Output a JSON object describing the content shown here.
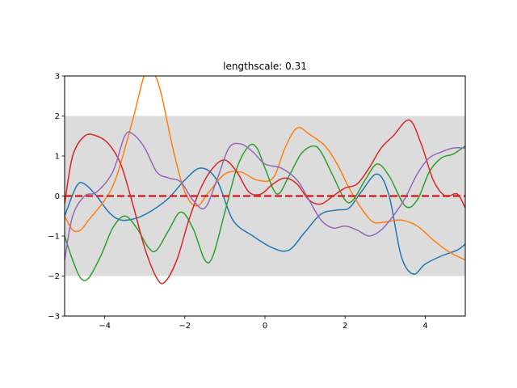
{
  "chart_data": {
    "type": "line",
    "title": "lengthscale: 0.31",
    "xlabel": "",
    "ylabel": "",
    "xlim": [
      -5,
      5
    ],
    "ylim": [
      -3,
      3
    ],
    "grid": false,
    "x_ticks": [
      -4,
      -2,
      0,
      2,
      4
    ],
    "x_tick_labels": [
      "−4",
      "−2",
      "0",
      "2",
      "4"
    ],
    "y_ticks": [
      -3,
      -2,
      -1,
      0,
      1,
      2,
      3
    ],
    "y_tick_labels": [
      "−3",
      "−2",
      "−1",
      "0",
      "1",
      "2",
      "3"
    ],
    "band": {
      "y_low": -2,
      "y_high": 2,
      "color": "#dcdcdc"
    },
    "mean_line": {
      "y": 0,
      "color": "#d62728",
      "style": "dashed"
    },
    "series": [
      {
        "color": "#1f77b4",
        "x": [
          -5,
          -4.7,
          -4.5,
          -4.2,
          -3.9,
          -3.6,
          -3.2,
          -2.8,
          -2.4,
          -2.0,
          -1.6,
          -1.2,
          -0.8,
          -0.3,
          0.2,
          0.6,
          1.0,
          1.4,
          1.8,
          2.1,
          2.4,
          2.8,
          3.1,
          3.4,
          3.7,
          4.0,
          4.4,
          4.8,
          5.0
        ],
        "y": [
          -0.5,
          0.25,
          0.3,
          0.0,
          -0.4,
          -0.6,
          -0.55,
          -0.35,
          -0.05,
          0.4,
          0.7,
          0.4,
          -0.6,
          -1.0,
          -1.3,
          -1.35,
          -0.9,
          -0.45,
          -0.35,
          -0.3,
          0.1,
          0.55,
          0.0,
          -1.5,
          -1.95,
          -1.7,
          -1.5,
          -1.35,
          -1.2
        ]
      },
      {
        "color": "#ff7f0e",
        "x": [
          -5,
          -4.8,
          -4.6,
          -4.4,
          -4.0,
          -3.7,
          -3.3,
          -3.0,
          -2.8,
          -2.6,
          -2.3,
          -2.0,
          -1.7,
          -1.4,
          -1.0,
          -0.6,
          -0.2,
          0.2,
          0.5,
          0.8,
          1.1,
          1.5,
          1.8,
          2.1,
          2.4,
          2.7,
          3.0,
          3.4,
          3.8,
          4.2,
          4.6,
          5.0
        ],
        "y": [
          -0.5,
          -0.85,
          -0.85,
          -0.6,
          -0.1,
          0.5,
          1.9,
          3.05,
          3.1,
          2.6,
          1.2,
          0.1,
          -0.25,
          0.1,
          0.55,
          0.6,
          0.4,
          0.45,
          1.2,
          1.7,
          1.55,
          1.25,
          0.8,
          0.2,
          -0.3,
          -0.65,
          -0.65,
          -0.6,
          -0.75,
          -1.1,
          -1.4,
          -1.6
        ]
      },
      {
        "color": "#2ca02c",
        "x": [
          -5,
          -4.8,
          -4.6,
          -4.4,
          -4.1,
          -3.8,
          -3.5,
          -3.2,
          -2.9,
          -2.7,
          -2.4,
          -2.1,
          -1.8,
          -1.5,
          -1.3,
          -1.0,
          -0.7,
          -0.4,
          -0.2,
          0.0,
          0.3,
          0.6,
          0.9,
          1.2,
          1.4,
          1.7,
          2.0,
          2.2,
          2.5,
          2.8,
          3.1,
          3.5,
          3.8,
          4.1,
          4.4,
          4.7,
          5.0
        ],
        "y": [
          -1.0,
          -1.6,
          -2.05,
          -2.05,
          -1.5,
          -0.8,
          -0.5,
          -0.8,
          -1.3,
          -1.35,
          -0.85,
          -0.4,
          -0.8,
          -1.6,
          -1.5,
          -0.4,
          0.7,
          1.25,
          1.2,
          0.7,
          0.05,
          0.5,
          1.05,
          1.25,
          1.1,
          0.5,
          -0.1,
          -0.1,
          0.4,
          0.8,
          0.5,
          -0.25,
          -0.1,
          0.6,
          0.95,
          1.05,
          1.25
        ]
      },
      {
        "color": "#d62728",
        "x": [
          -5,
          -4.8,
          -4.5,
          -4.2,
          -3.9,
          -3.6,
          -3.3,
          -3.0,
          -2.7,
          -2.5,
          -2.2,
          -1.9,
          -1.6,
          -1.3,
          -1.0,
          -0.7,
          -0.4,
          -0.1,
          0.2,
          0.5,
          0.8,
          1.1,
          1.4,
          1.7,
          2.0,
          2.3,
          2.6,
          2.9,
          3.2,
          3.6,
          3.9,
          4.2,
          4.5,
          4.8,
          5.0
        ],
        "y": [
          -0.2,
          1.0,
          1.5,
          1.5,
          1.3,
          0.8,
          -0.2,
          -1.3,
          -2.05,
          -2.15,
          -1.6,
          -0.6,
          0.2,
          0.7,
          0.9,
          0.6,
          0.1,
          0.05,
          0.3,
          0.45,
          0.3,
          -0.1,
          -0.2,
          0.0,
          0.2,
          0.3,
          0.7,
          1.2,
          1.5,
          1.9,
          1.3,
          0.4,
          0.0,
          0.05,
          -0.3
        ]
      },
      {
        "color": "#9467bd",
        "x": [
          -5,
          -4.8,
          -4.5,
          -4.2,
          -3.8,
          -3.5,
          -3.3,
          -3.0,
          -2.7,
          -2.4,
          -2.1,
          -1.8,
          -1.5,
          -1.2,
          -0.9,
          -0.6,
          -0.3,
          0.0,
          0.4,
          0.8,
          1.1,
          1.4,
          1.7,
          2.0,
          2.3,
          2.6,
          2.9,
          3.2,
          3.5,
          3.8,
          4.1,
          4.4,
          4.7,
          5.0
        ],
        "y": [
          -1.6,
          -0.5,
          0.0,
          0.1,
          0.6,
          1.5,
          1.55,
          1.2,
          0.6,
          0.45,
          0.35,
          -0.1,
          -0.3,
          0.4,
          1.2,
          1.3,
          1.1,
          0.8,
          0.7,
          0.4,
          -0.1,
          -0.6,
          -0.8,
          -0.75,
          -0.85,
          -1.0,
          -0.85,
          -0.5,
          -0.05,
          0.55,
          0.95,
          1.1,
          1.2,
          1.2
        ]
      }
    ]
  }
}
